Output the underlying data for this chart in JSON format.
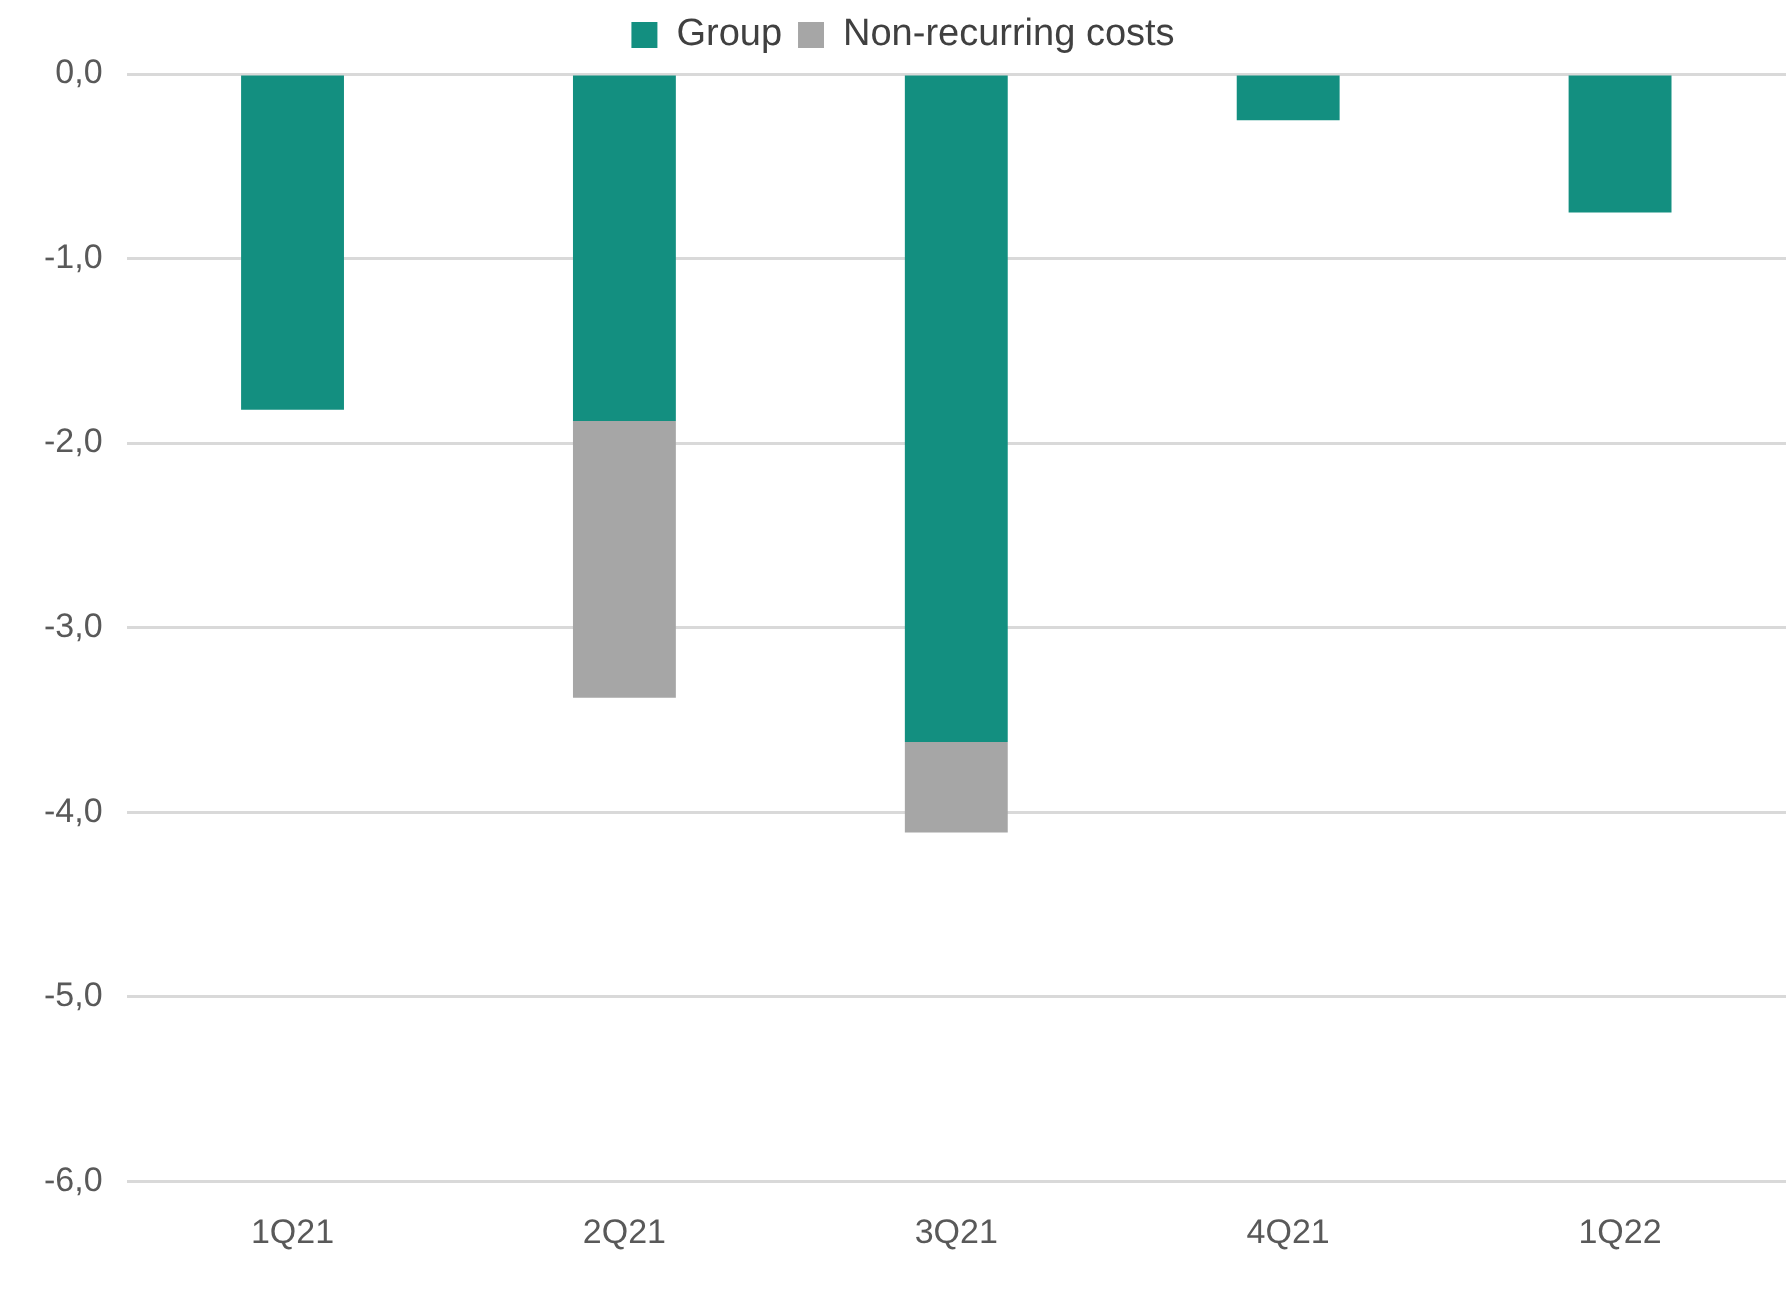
{
  "chart_data": {
    "type": "bar",
    "stacked": true,
    "categories": [
      "1Q21",
      "2Q21",
      "3Q21",
      "4Q21",
      "1Q22"
    ],
    "series": [
      {
        "name": "Group",
        "color": "#138f80",
        "values": [
          -1.82,
          -1.88,
          -3.62,
          -0.25,
          -0.75
        ]
      },
      {
        "name": "Non-recurring costs",
        "color": "#a6a6a6",
        "values": [
          null,
          -1.5,
          -0.49,
          null,
          null
        ]
      }
    ],
    "ylim": [
      -6,
      0
    ],
    "yticks": [
      {
        "value": 0,
        "label": "0,0"
      },
      {
        "value": -1,
        "label": "-1,0"
      },
      {
        "value": -2,
        "label": "-2,0"
      },
      {
        "value": -3,
        "label": "-3,0"
      },
      {
        "value": -4,
        "label": "-4,0"
      },
      {
        "value": -5,
        "label": "-5,0"
      },
      {
        "value": -6,
        "label": "-6,0"
      }
    ],
    "grid": "y",
    "legend": "top"
  }
}
